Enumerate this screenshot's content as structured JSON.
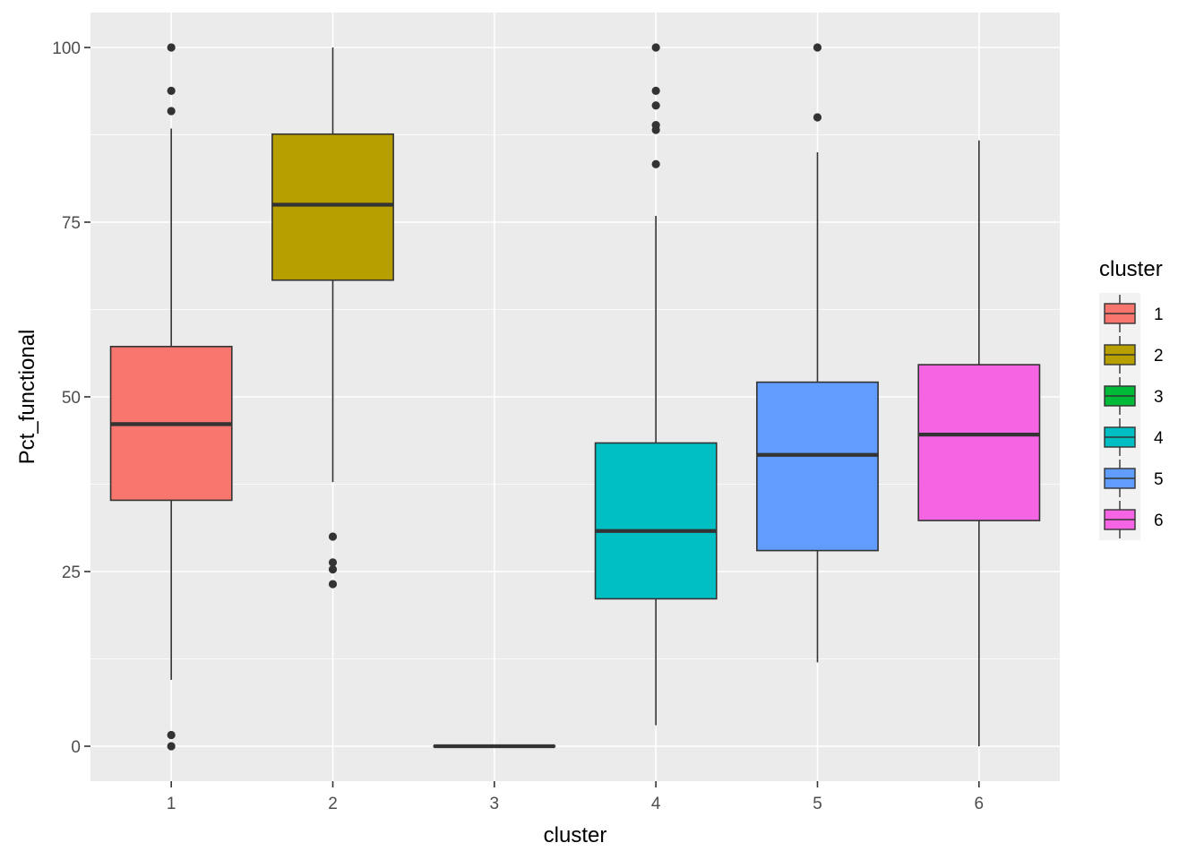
{
  "chart_data": {
    "type": "boxplot",
    "title": "",
    "xlabel": "cluster",
    "ylabel": "Pct_functional",
    "categories": [
      "1",
      "2",
      "3",
      "4",
      "5",
      "6"
    ],
    "ylim": [
      -5,
      105
    ],
    "yticks": [
      0,
      25,
      50,
      75,
      100
    ],
    "ytick_labels": [
      "0",
      "25",
      "50",
      "75",
      "100"
    ],
    "grid": true,
    "legend": {
      "title": "cluster",
      "position": "right",
      "labels": [
        "1",
        "2",
        "3",
        "4",
        "5",
        "6"
      ]
    },
    "colors": [
      "#F8766D",
      "#B79F00",
      "#00BA38",
      "#00BFC4",
      "#619CFF",
      "#F564E3"
    ],
    "panel_background": "#EBEBEB",
    "grid_color": "#FFFFFF",
    "series": [
      {
        "name": "1",
        "whisker_low": 9.5,
        "q1": 35.2,
        "median": 46.1,
        "q3": 57.2,
        "whisker_high": 88.4,
        "outliers": [
          100,
          93.8,
          90.9,
          1.6,
          0
        ]
      },
      {
        "name": "2",
        "whisker_low": 37.8,
        "q1": 66.7,
        "median": 77.5,
        "q3": 87.6,
        "whisker_high": 100,
        "outliers": [
          30,
          26.3,
          25.3,
          23.2
        ]
      },
      {
        "name": "3",
        "whisker_low": 0,
        "q1": 0,
        "median": 0,
        "q3": 0,
        "whisker_high": 0,
        "outliers": []
      },
      {
        "name": "4",
        "whisker_low": 3,
        "q1": 21.1,
        "median": 30.8,
        "q3": 43.4,
        "whisker_high": 75.9,
        "outliers": [
          100,
          93.8,
          91.7,
          88.9,
          88.2,
          83.3
        ]
      },
      {
        "name": "5",
        "whisker_low": 12,
        "q1": 28,
        "median": 41.7,
        "q3": 52.1,
        "whisker_high": 85,
        "outliers": [
          100,
          90
        ]
      },
      {
        "name": "6",
        "whisker_low": 0,
        "q1": 32.3,
        "median": 44.6,
        "q3": 54.6,
        "whisker_high": 86.7,
        "outliers": []
      }
    ]
  }
}
